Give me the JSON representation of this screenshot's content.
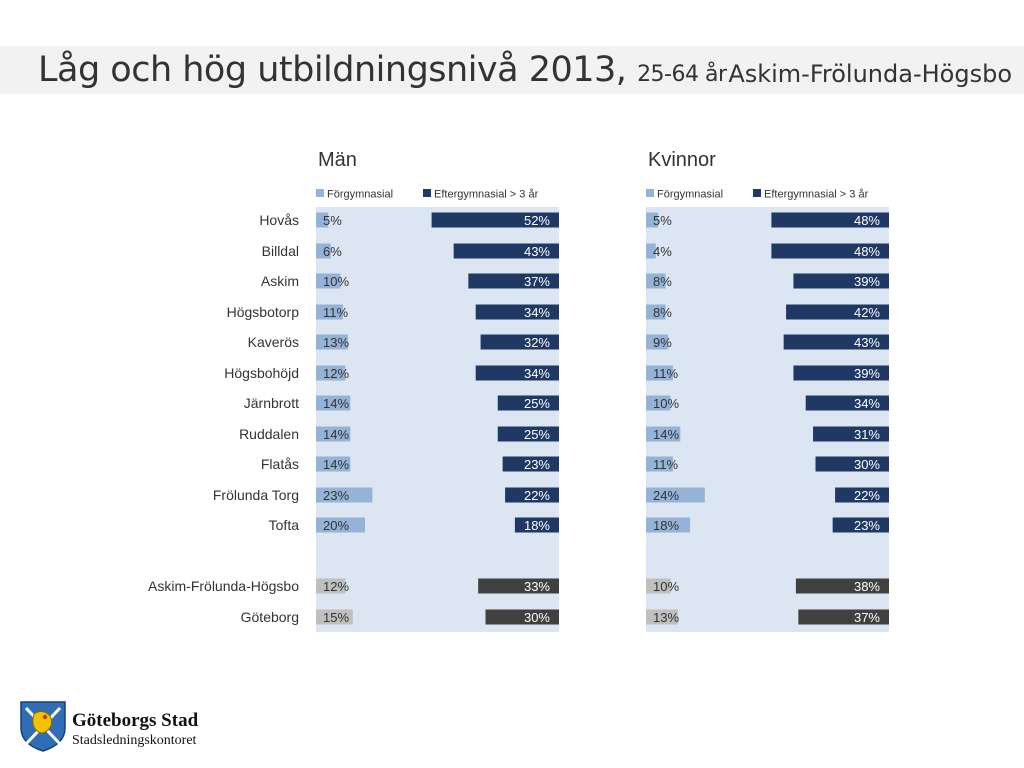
{
  "header": {
    "title": "Låg och hög utbildningsnivå 2013,",
    "subtitle": "25-64 år",
    "region": "Askim-Frölunda-Högsbo"
  },
  "logo": {
    "name": "Göteborgs Stad",
    "department": "Stadsledningskontoret"
  },
  "colors": {
    "panel_bg": "#dce6f2",
    "low_edu": "#95b3d7",
    "high_edu": "#1f3864",
    "summary_low": "#bfbfbf",
    "summary_high": "#404040"
  },
  "chart_data": [
    {
      "type": "bar",
      "title": "Män",
      "categories": [
        "Hovås",
        "Billdal",
        "Askim",
        "Högsbotorp",
        "Kaverös",
        "Högsbohöjd",
        "Järnbrott",
        "Ruddalen",
        "Flatås",
        "Frölunda Torg",
        "Tofta",
        "Askim-Frölunda-Högsbo",
        "Göteborg"
      ],
      "series": [
        {
          "name": "Förgymnasial",
          "values": [
            5,
            6,
            10,
            11,
            13,
            12,
            14,
            14,
            14,
            23,
            20,
            12,
            15
          ]
        },
        {
          "name": "Eftergymnasial > 3 år",
          "values": [
            52,
            43,
            37,
            34,
            32,
            34,
            25,
            25,
            23,
            22,
            18,
            33,
            30
          ]
        }
      ],
      "legend": "top",
      "grid": false
    },
    {
      "type": "bar",
      "title": "Kvinnor",
      "categories": [
        "Hovås",
        "Billdal",
        "Askim",
        "Högsbotorp",
        "Kaverös",
        "Högsbohöjd",
        "Järnbrott",
        "Ruddalen",
        "Flatås",
        "Frölunda Torg",
        "Tofta",
        "Askim-Frölunda-Högsbo",
        "Göteborg"
      ],
      "series": [
        {
          "name": "Förgymnasial",
          "values": [
            5,
            4,
            8,
            8,
            9,
            11,
            10,
            14,
            11,
            24,
            18,
            10,
            13
          ]
        },
        {
          "name": "Eftergymnasial > 3 år",
          "values": [
            48,
            48,
            39,
            42,
            43,
            39,
            34,
            31,
            30,
            22,
            23,
            38,
            37
          ]
        }
      ],
      "legend": "top",
      "grid": false
    }
  ]
}
